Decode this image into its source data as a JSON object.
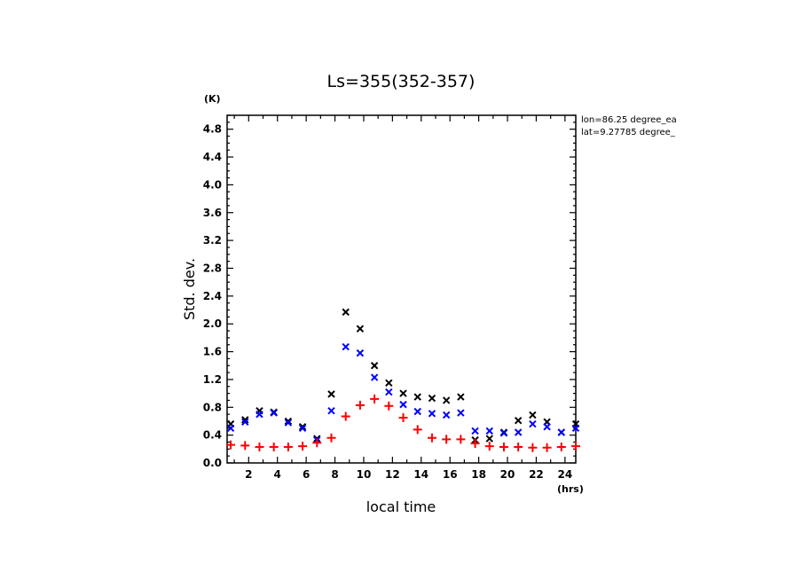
{
  "chart_data": {
    "type": "scatter",
    "title": "Ls=355(352-357)",
    "xlabel": "local time",
    "ylabel": "Std. dev.",
    "x_unit": "(hrs)",
    "y_unit": "(K)",
    "xlim": [
      0.5,
      24.75
    ],
    "ylim": [
      0,
      5.0
    ],
    "xticks": [
      2,
      4,
      6,
      8,
      10,
      12,
      14,
      16,
      18,
      20,
      22,
      24
    ],
    "yticks": [
      0.0,
      0.4,
      0.8,
      1.2,
      1.6,
      2.0,
      2.4,
      2.8,
      3.2,
      3.6,
      4.0,
      4.4,
      4.8
    ],
    "ytick_labels": [
      "0.0",
      "0.4",
      "0.8",
      "1.2",
      "1.6",
      "2.0",
      "2.4",
      "2.8",
      "3.2",
      "3.6",
      "4.0",
      "4.4",
      "4.8"
    ],
    "info": [
      "lon=86.25 degree_ea",
      "lat=9.27785 degree_"
    ],
    "x": [
      0.75,
      1.75,
      2.75,
      3.75,
      4.75,
      5.75,
      6.75,
      7.75,
      8.75,
      9.75,
      10.75,
      11.75,
      12.75,
      13.75,
      14.75,
      15.75,
      16.75,
      17.75,
      18.75,
      19.75,
      20.75,
      21.75,
      22.75,
      23.75,
      24.75
    ],
    "series": [
      {
        "marker": "x",
        "color": "#000000",
        "values": [
          0.56,
          0.62,
          0.75,
          0.73,
          0.6,
          0.52,
          0.35,
          0.99,
          2.17,
          1.93,
          1.4,
          1.15,
          1.0,
          0.95,
          0.93,
          0.9,
          0.95,
          0.33,
          0.35,
          0.44,
          0.61,
          0.69,
          0.59,
          0.44,
          0.56
        ]
      },
      {
        "marker": "x",
        "color": "#0000ff",
        "values": [
          0.5,
          0.59,
          0.7,
          0.72,
          0.58,
          0.5,
          0.33,
          0.75,
          1.67,
          1.58,
          1.23,
          1.02,
          0.84,
          0.74,
          0.71,
          0.69,
          0.72,
          0.46,
          0.46,
          0.43,
          0.44,
          0.56,
          0.52,
          0.44,
          0.5
        ]
      },
      {
        "marker": "+",
        "color": "#ff0000",
        "values": [
          0.26,
          0.25,
          0.23,
          0.23,
          0.23,
          0.24,
          0.29,
          0.36,
          0.67,
          0.83,
          0.92,
          0.82,
          0.65,
          0.48,
          0.36,
          0.34,
          0.34,
          0.28,
          0.24,
          0.23,
          0.23,
          0.22,
          0.22,
          0.23,
          0.24
        ]
      }
    ]
  }
}
